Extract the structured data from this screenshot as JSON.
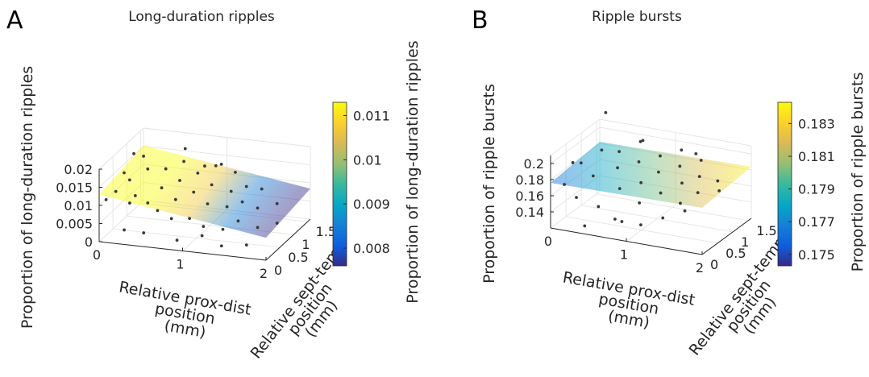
{
  "figure": {
    "panel_letters": [
      "A",
      "B"
    ]
  },
  "chart_data": [
    {
      "type": "scatter",
      "panel": "A",
      "title": "Long-duration ripples",
      "xlabel": "Relative prox-dist position (mm)",
      "xlabel_lines": [
        "Relative prox-dist",
        "position",
        "(mm)"
      ],
      "ylabel_lines": [
        "Relative sept-temp",
        "position",
        "(mm)"
      ],
      "zlabel": "Proportion of long-duration ripples",
      "x_ticks": [
        "0",
        "1",
        "2"
      ],
      "y_ticks": [
        "0",
        "0.5",
        "1",
        "1.5"
      ],
      "z_ticks": [
        "0",
        "0.005",
        "0.01",
        "0.015",
        "0.02"
      ],
      "xlim": [
        0,
        2
      ],
      "ylim": [
        0,
        1.6
      ],
      "zlim": [
        0,
        0.02
      ],
      "colorbar": {
        "label": "Proportion of long-duration ripples",
        "ticks": [
          "0.008",
          "0.009",
          "0.01",
          "0.011"
        ],
        "range": [
          0.0076,
          0.0113
        ],
        "colormap": "parula"
      },
      "plane": {
        "z00": 0.013,
        "z10": 0.0062,
        "z01": 0.0152,
        "z11": 0.0084
      },
      "points": [
        [
          0.05,
          0.1,
          0.011
        ],
        [
          0.1,
          0.3,
          0.012
        ],
        [
          0.2,
          0.5,
          0.014
        ],
        [
          0.3,
          0.2,
          0.01
        ],
        [
          0.35,
          0.7,
          0.016
        ],
        [
          0.4,
          0.1,
          0.013
        ],
        [
          0.45,
          0.4,
          0.009
        ],
        [
          0.5,
          0.9,
          0.015
        ],
        [
          0.55,
          0.6,
          0.012
        ],
        [
          0.6,
          0.3,
          0.008
        ],
        [
          0.65,
          1.1,
          0.016
        ],
        [
          0.7,
          0.8,
          0.013
        ],
        [
          0.75,
          0.5,
          0.01
        ],
        [
          0.8,
          0.2,
          0.007
        ],
        [
          0.85,
          1.0,
          0.014
        ],
        [
          0.9,
          0.7,
          0.011
        ],
        [
          0.95,
          0.4,
          0.006
        ],
        [
          1.0,
          1.2,
          0.015
        ],
        [
          1.05,
          0.9,
          0.012
        ],
        [
          1.1,
          0.6,
          0.009
        ],
        [
          1.15,
          0.3,
          0.005
        ],
        [
          1.2,
          1.3,
          0.013
        ],
        [
          1.25,
          1.0,
          0.01
        ],
        [
          1.3,
          0.7,
          0.008
        ],
        [
          1.35,
          0.4,
          0.004
        ],
        [
          1.4,
          1.1,
          0.011
        ],
        [
          1.45,
          0.8,
          0.009
        ],
        [
          1.5,
          0.5,
          0.006
        ],
        [
          1.55,
          1.2,
          0.01
        ],
        [
          1.6,
          0.9,
          0.007
        ],
        [
          1.7,
          0.6,
          0.004
        ],
        [
          1.8,
          1.0,
          0.008
        ],
        [
          1.9,
          0.7,
          0.005
        ],
        [
          0.15,
          0.8,
          0.019
        ],
        [
          0.6,
          1.3,
          0.018
        ],
        [
          0.3,
          0.0,
          0.004
        ],
        [
          0.9,
          0.1,
          0.002
        ],
        [
          1.4,
          0.2,
          0.001
        ],
        [
          0.2,
          1.0,
          0.017
        ],
        [
          1.0,
          1.4,
          0.014
        ],
        [
          0.5,
          0.1,
          0.003
        ],
        [
          1.7,
          0.2,
          0.002
        ],
        [
          0.8,
          1.4,
          0.013
        ],
        [
          1.2,
          0.1,
          0.004
        ],
        [
          0.1,
          0.6,
          0.015
        ]
      ]
    },
    {
      "type": "scatter",
      "panel": "B",
      "title": "Ripple bursts",
      "xlabel": "Relative prox-dist position (mm)",
      "xlabel_lines": [
        "Relative prox-dist",
        "position",
        "(mm)"
      ],
      "ylabel_lines": [
        "Relative sept-temp",
        "position",
        "(mm)"
      ],
      "zlabel": "Proportion of ripple bursts",
      "x_ticks": [
        "0",
        "1",
        "2"
      ],
      "y_ticks": [
        "0",
        "0.5",
        "1",
        "1.5"
      ],
      "z_ticks": [
        "0.14",
        "0.16",
        "0.18",
        "0.2"
      ],
      "xlim": [
        0,
        2
      ],
      "ylim": [
        0,
        1.6
      ],
      "zlim": [
        0.12,
        0.21
      ],
      "colorbar": {
        "label": "Proportion of ripple bursts",
        "ticks": [
          "0.175",
          "0.177",
          "0.179",
          "0.181",
          "0.183"
        ],
        "range": [
          0.1743,
          0.1843
        ],
        "colormap": "parula"
      },
      "plane": {
        "z00": 0.176,
        "z10": 0.178,
        "z01": 0.182,
        "z11": 0.184
      },
      "points": [
        [
          0.1,
          0.2,
          0.17
        ],
        [
          0.2,
          0.5,
          0.19
        ],
        [
          0.3,
          0.1,
          0.16
        ],
        [
          0.35,
          0.8,
          0.2
        ],
        [
          0.4,
          0.4,
          0.18
        ],
        [
          0.5,
          1.0,
          0.195
        ],
        [
          0.55,
          0.2,
          0.15
        ],
        [
          0.6,
          0.7,
          0.185
        ],
        [
          0.7,
          1.2,
          0.205
        ],
        [
          0.75,
          0.4,
          0.17
        ],
        [
          0.8,
          0.9,
          0.19
        ],
        [
          0.9,
          0.1,
          0.14
        ],
        [
          0.95,
          0.6,
          0.175
        ],
        [
          1.0,
          1.1,
          0.195
        ],
        [
          1.05,
          0.3,
          0.16
        ],
        [
          1.1,
          0.8,
          0.185
        ],
        [
          1.2,
          1.3,
          0.2
        ],
        [
          1.25,
          0.5,
          0.17
        ],
        [
          1.3,
          1.0,
          0.19
        ],
        [
          1.4,
          0.2,
          0.15
        ],
        [
          1.45,
          0.7,
          0.18
        ],
        [
          1.5,
          1.2,
          0.195
        ],
        [
          1.55,
          0.4,
          0.165
        ],
        [
          1.6,
          0.9,
          0.185
        ],
        [
          1.7,
          0.6,
          0.175
        ],
        [
          1.8,
          1.0,
          0.18
        ],
        [
          0.2,
          1.3,
          0.23
        ],
        [
          0.45,
          0.0,
          0.13
        ],
        [
          1.15,
          0.1,
          0.14
        ],
        [
          0.65,
          1.4,
          0.2
        ],
        [
          1.35,
          1.4,
          0.195
        ],
        [
          0.05,
          0.6,
          0.185
        ],
        [
          1.65,
          0.3,
          0.16
        ],
        [
          0.85,
          0.0,
          0.145
        ],
        [
          1.9,
          0.8,
          0.175
        ]
      ]
    }
  ]
}
